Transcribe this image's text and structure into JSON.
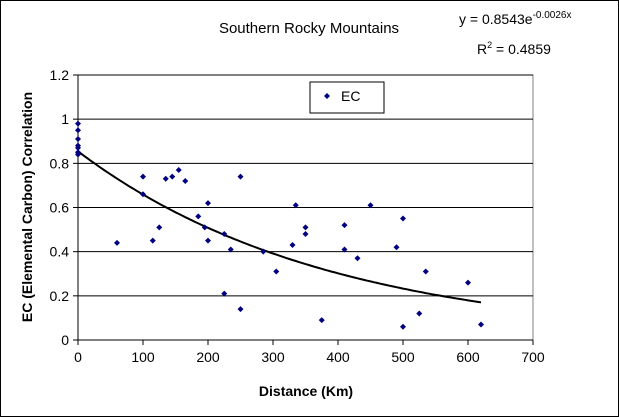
{
  "chart_data": {
    "type": "scatter",
    "title": "Southern Rocky Mountains",
    "xlabel": "Distance (Km)",
    "ylabel": "EC (Elemental Carbon) Correlation",
    "xlim": [
      0,
      700
    ],
    "ylim": [
      0,
      1.2
    ],
    "x_ticks": [
      "0",
      "100",
      "200",
      "300",
      "400",
      "500",
      "600",
      "700"
    ],
    "y_ticks": [
      "0",
      "0.2",
      "0.4",
      "0.6",
      "0.8",
      "1",
      "1.2"
    ],
    "grid": "horizontal",
    "legend": {
      "position": "top-center",
      "entries": [
        "EC"
      ]
    },
    "marker_color": "#000080",
    "trendline": {
      "type": "exponential",
      "a": 0.8543,
      "b": -0.0026,
      "x_range": [
        0,
        620
      ],
      "equation_base": "y = 0.8543e",
      "equation_exponent": "-0.0026x",
      "r2_prefix": "R",
      "r2_sup": "2",
      "r2_value": " = 0.4859"
    },
    "series": [
      {
        "name": "EC",
        "points": [
          [
            0,
            0.98
          ],
          [
            0,
            0.95
          ],
          [
            0,
            0.91
          ],
          [
            0,
            0.88
          ],
          [
            0,
            0.87
          ],
          [
            0,
            0.85
          ],
          [
            0,
            0.84
          ],
          [
            60,
            0.44
          ],
          [
            100,
            0.74
          ],
          [
            100,
            0.66
          ],
          [
            115,
            0.45
          ],
          [
            125,
            0.51
          ],
          [
            135,
            0.73
          ],
          [
            145,
            0.74
          ],
          [
            155,
            0.77
          ],
          [
            165,
            0.72
          ],
          [
            185,
            0.56
          ],
          [
            195,
            0.51
          ],
          [
            200,
            0.62
          ],
          [
            200,
            0.45
          ],
          [
            225,
            0.48
          ],
          [
            225,
            0.21
          ],
          [
            235,
            0.41
          ],
          [
            250,
            0.74
          ],
          [
            250,
            0.14
          ],
          [
            285,
            0.4
          ],
          [
            305,
            0.31
          ],
          [
            330,
            0.43
          ],
          [
            335,
            0.61
          ],
          [
            350,
            0.51
          ],
          [
            350,
            0.48
          ],
          [
            375,
            0.09
          ],
          [
            410,
            0.52
          ],
          [
            410,
            0.41
          ],
          [
            430,
            0.37
          ],
          [
            450,
            0.61
          ],
          [
            490,
            0.42
          ],
          [
            500,
            0.55
          ],
          [
            500,
            0.06
          ],
          [
            525,
            0.12
          ],
          [
            535,
            0.31
          ],
          [
            600,
            0.26
          ],
          [
            620,
            0.07
          ]
        ]
      }
    ]
  }
}
